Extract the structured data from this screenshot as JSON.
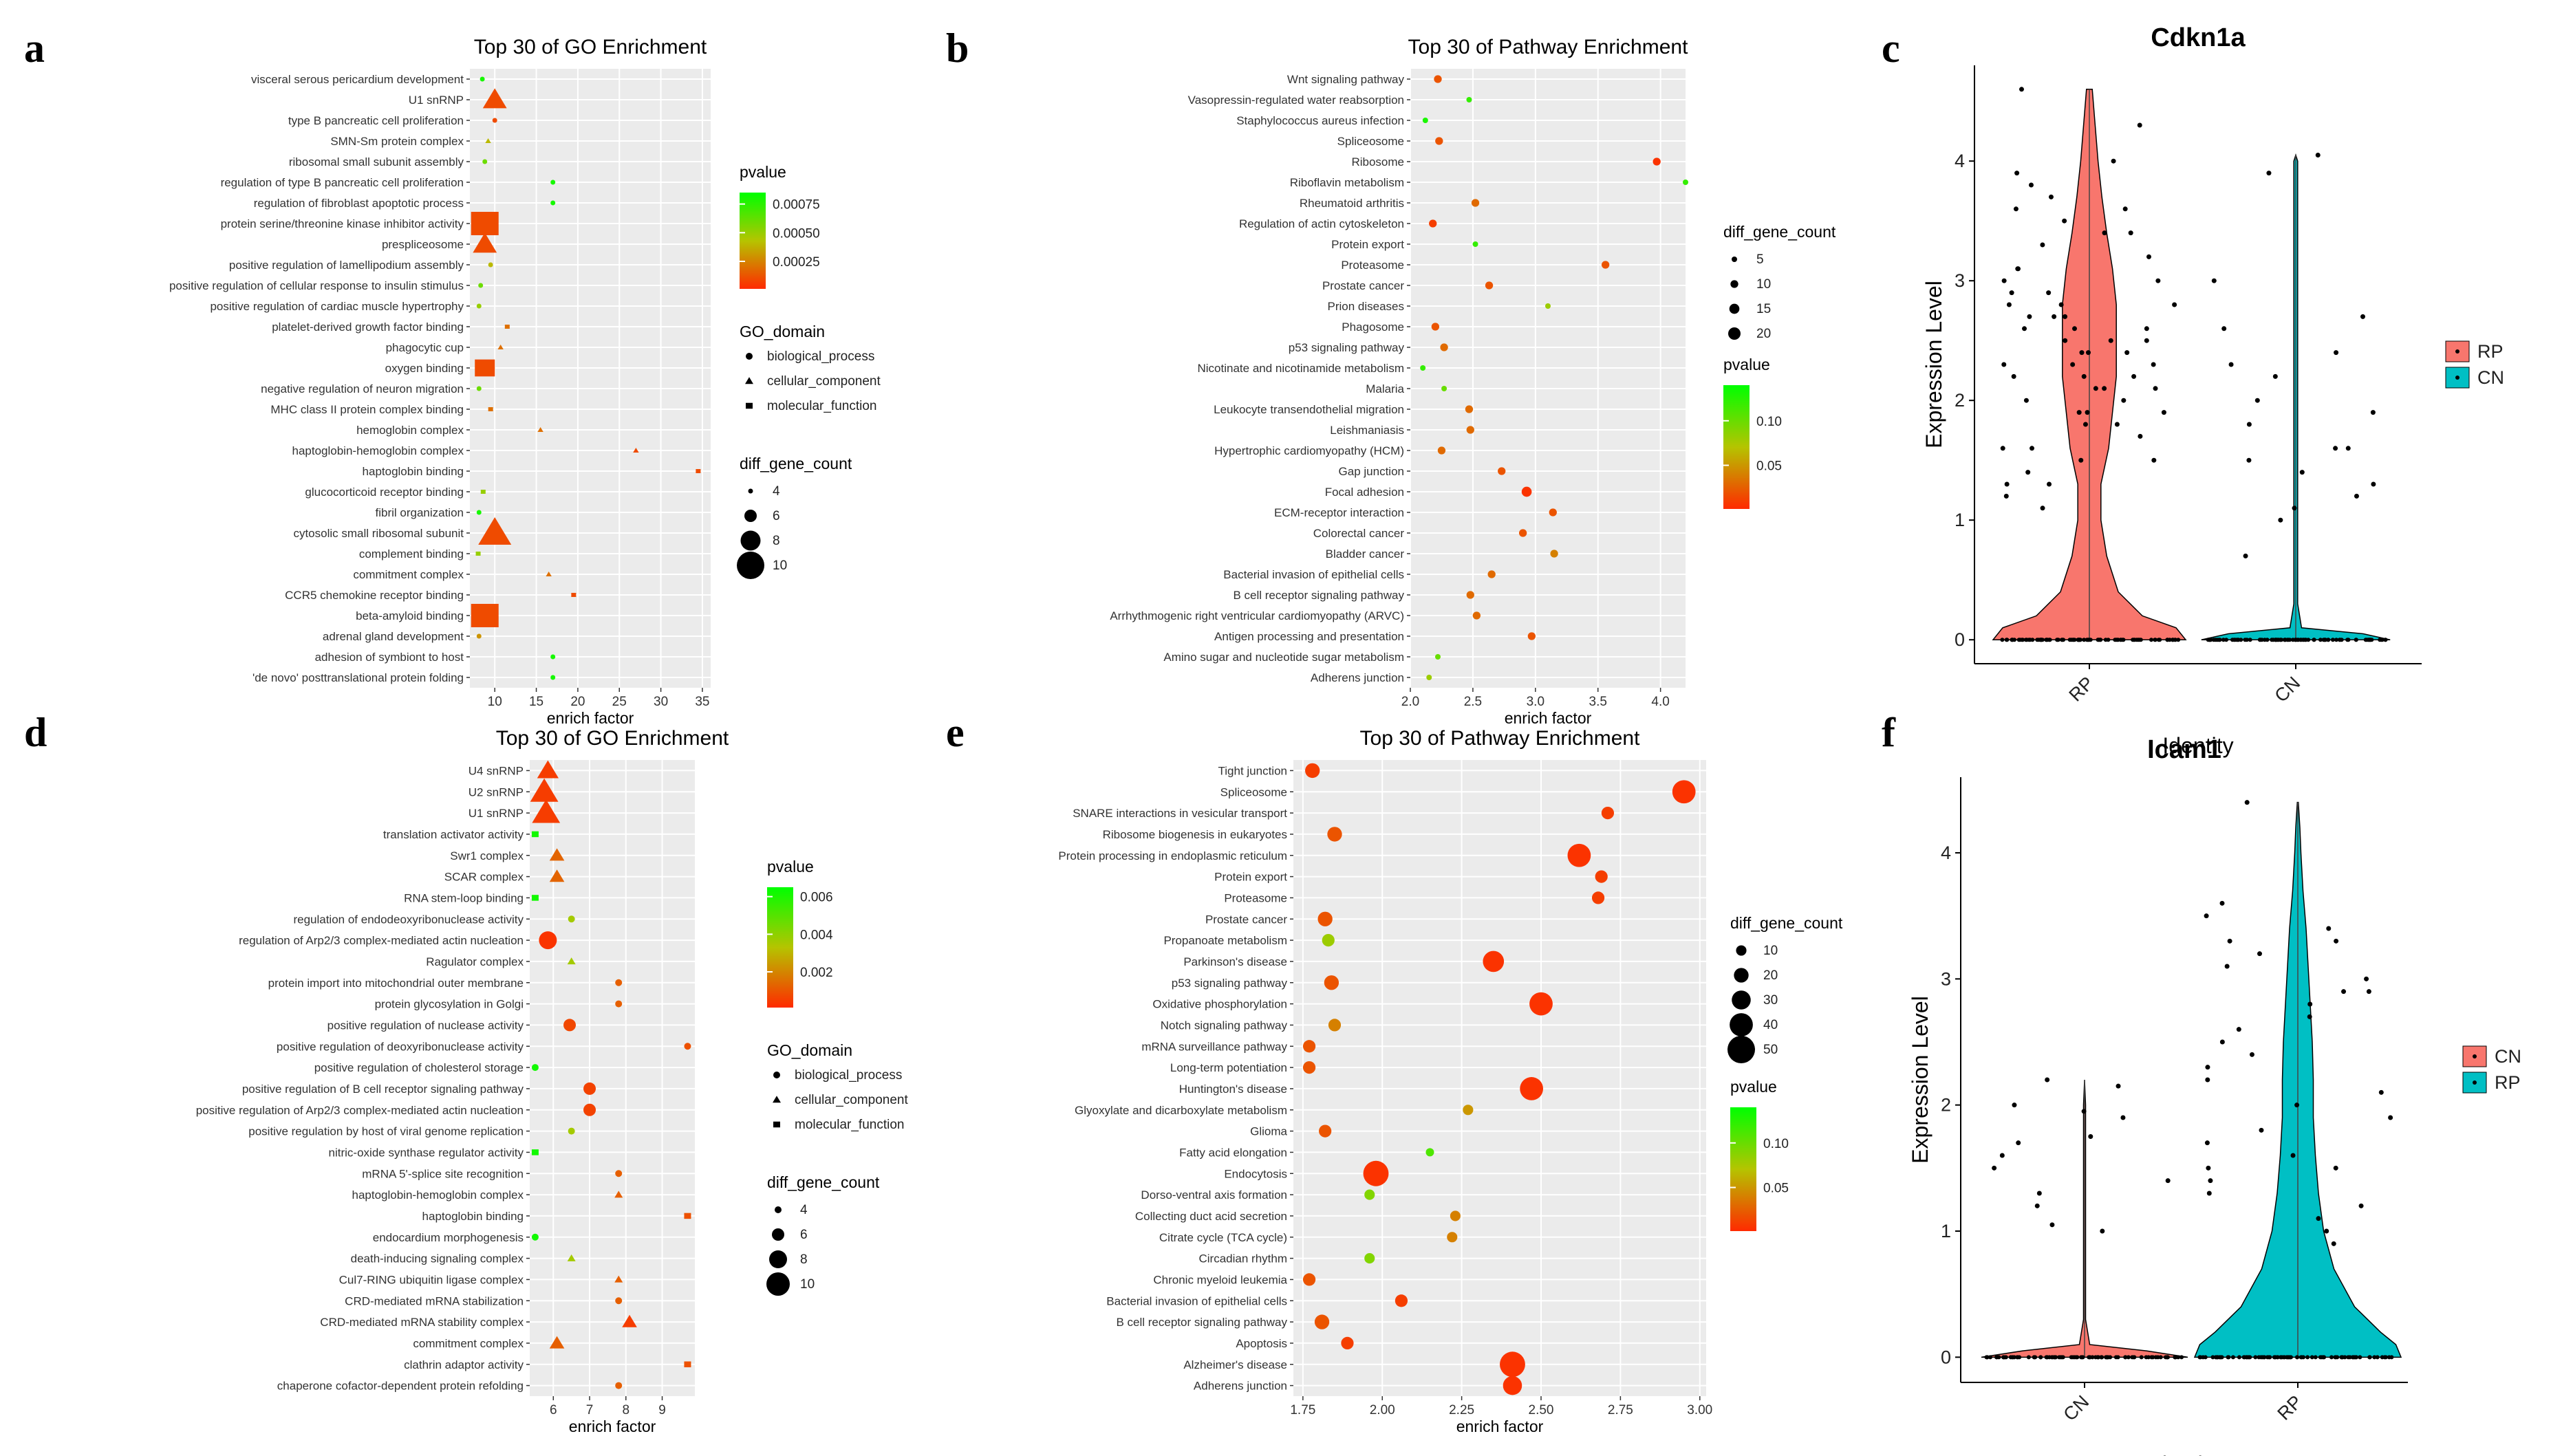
{
  "chart_data": [
    {
      "id": "a",
      "panel_label": "a",
      "type": "scatter",
      "title": "Top 30 of GO Enrichment",
      "xlabel": "enrich factor",
      "xlim": [
        7,
        36
      ],
      "xticks": [
        10,
        15,
        20,
        25,
        30,
        35
      ],
      "ylabels": [
        "visceral serous pericardium development",
        "U1 snRNP",
        "type B pancreatic cell proliferation",
        "SMN-Sm protein complex",
        "ribosomal small subunit assembly",
        "regulation of type B pancreatic cell proliferation",
        "regulation of fibroblast apoptotic process",
        "protein serine/threonine kinase inhibitor activity",
        "prespliceosome",
        "positive regulation of lamellipodium assembly",
        "positive regulation of cellular response to insulin stimulus",
        "positive regulation of cardiac muscle hypertrophy",
        "platelet-derived growth factor binding",
        "phagocytic cup",
        "oxygen binding",
        "negative regulation of neuron migration",
        "MHC class II protein complex binding",
        "hemoglobin complex",
        "haptoglobin-hemoglobin complex",
        "haptoglobin binding",
        "glucocorticoid receptor binding",
        "fibril organization",
        "cytosolic small ribosomal subunit",
        "complement binding",
        "commitment complex",
        "CCR5 chemokine receptor binding",
        "beta-amyloid binding",
        "adrenal gland development",
        "adhesion of symbiont to host",
        "'de novo' posttranslational protein folding"
      ],
      "x": [
        8.5,
        10,
        10,
        9.2,
        8.8,
        17,
        17,
        8.8,
        8.8,
        9.5,
        8.3,
        8.1,
        11.5,
        10.7,
        8.8,
        8.1,
        9.5,
        15.5,
        27,
        34.5,
        8.6,
        8.1,
        10,
        8,
        16.5,
        19.5,
        8.8,
        8.1,
        17,
        17
      ],
      "sizes": [
        4,
        8,
        4,
        4,
        4,
        4,
        4,
        10,
        8,
        4,
        4,
        4,
        4,
        4,
        8,
        4,
        4,
        4,
        4,
        4,
        4,
        4,
        10,
        4,
        4,
        4,
        10,
        4,
        4,
        4
      ],
      "pvalue": [
        0.0008,
        0.0001,
        0.0001,
        0.0004,
        0.0006,
        0.0008,
        0.0008,
        0.0001,
        0.0001,
        0.0004,
        0.0006,
        0.0005,
        0.0002,
        0.0002,
        0.0001,
        0.0006,
        0.0002,
        0.0002,
        0.0001,
        0.0001,
        0.0005,
        0.0008,
        0.0001,
        0.0005,
        0.0002,
        0.0001,
        0.0001,
        0.0003,
        0.0008,
        0.0008
      ],
      "domain": [
        "b",
        "c",
        "b",
        "c",
        "b",
        "b",
        "b",
        "m",
        "c",
        "b",
        "b",
        "b",
        "m",
        "c",
        "m",
        "b",
        "m",
        "c",
        "c",
        "m",
        "m",
        "b",
        "c",
        "m",
        "c",
        "m",
        "m",
        "b",
        "b",
        "b"
      ],
      "pvalue_range": [
        1e-05,
        0.00085
      ],
      "pvalue_legend_title": "pvalue",
      "pvalue_ticks": [
        "0.00075",
        "0.00050",
        "0.00025"
      ],
      "pvalue_tick_values": [
        0.00075,
        0.0005,
        0.00025
      ],
      "domain_legend_title": "GO_domain",
      "domain_legend": [
        "biological_process",
        "cellular_component",
        "molecular_function"
      ],
      "size_legend_title": "diff_gene_count",
      "size_legend": [
        "4",
        "6",
        "8",
        "10"
      ],
      "size_legend_values": [
        4,
        6,
        8,
        10
      ],
      "size_domain": [
        4,
        10
      ]
    },
    {
      "id": "b",
      "panel_label": "b",
      "type": "scatter",
      "title": "Top 30 of Pathway Enrichment",
      "xlabel": "enrich factor",
      "xlim": [
        2.0,
        4.2
      ],
      "xticks": [
        2.0,
        2.5,
        3.0,
        3.5,
        4.0
      ],
      "xtick_labels": [
        "2.0",
        "2.5",
        "3.0",
        "3.5",
        "4.0"
      ],
      "ylabels": [
        "Wnt signaling pathway",
        "Vasopressin-regulated water reabsorption",
        "Staphylococcus aureus infection",
        "Spliceosome",
        "Ribosome",
        "Riboflavin metabolism",
        "Rheumatoid arthritis",
        "Regulation of actin cytoskeleton",
        "Protein export",
        "Proteasome",
        "Prostate cancer",
        "Prion diseases",
        "Phagosome",
        "p53 signaling pathway",
        "Nicotinate and nicotinamide metabolism",
        "Malaria",
        "Leukocyte transendothelial migration",
        "Leishmaniasis",
        "Hypertrophic cardiomyopathy (HCM)",
        "Gap junction",
        "Focal adhesion",
        "ECM-receptor interaction",
        "Colorectal cancer",
        "Bladder cancer",
        "Bacterial invasion of epithelial cells",
        "B cell receptor signaling pathway",
        "Arrhythmogenic right ventricular cardiomyopathy (ARVC)",
        "Antigen processing and presentation",
        "Amino sugar and nucleotide sugar metabolism",
        "Adherens junction"
      ],
      "x": [
        2.22,
        2.47,
        2.12,
        2.23,
        3.97,
        4.2,
        2.52,
        2.18,
        2.52,
        3.56,
        2.63,
        3.1,
        2.2,
        2.27,
        2.1,
        2.27,
        2.47,
        2.48,
        2.25,
        2.73,
        2.93,
        3.14,
        2.9,
        3.15,
        2.65,
        2.48,
        2.53,
        2.97,
        2.22,
        2.15
      ],
      "sizes": [
        10,
        5,
        5,
        10,
        10,
        5,
        10,
        10,
        5,
        10,
        10,
        5,
        10,
        10,
        5,
        5,
        10,
        10,
        10,
        10,
        15,
        10,
        10,
        10,
        10,
        10,
        10,
        10,
        5,
        5
      ],
      "pvalue": [
        0.02,
        0.12,
        0.13,
        0.02,
        0.005,
        0.12,
        0.03,
        0.01,
        0.12,
        0.02,
        0.02,
        0.08,
        0.02,
        0.03,
        0.12,
        0.1,
        0.03,
        0.03,
        0.03,
        0.02,
        0.005,
        0.02,
        0.02,
        0.04,
        0.03,
        0.03,
        0.03,
        0.02,
        0.1,
        0.08
      ],
      "pvalue_range": [
        0.001,
        0.14
      ],
      "pvalue_legend_title": "pvalue",
      "pvalue_ticks": [
        "0.10",
        "0.05"
      ],
      "pvalue_tick_values": [
        0.1,
        0.05
      ],
      "size_legend_title": "diff_gene_count",
      "size_legend": [
        "5",
        "10",
        "15",
        "20"
      ],
      "size_legend_values": [
        5,
        10,
        15,
        20
      ],
      "size_domain": [
        5,
        20
      ]
    },
    {
      "id": "d",
      "panel_label": "d",
      "type": "scatter",
      "title": "Top 30 of GO Enrichment",
      "xlabel": "enrich factor",
      "xlim": [
        5.35,
        9.9
      ],
      "xticks": [
        6,
        7,
        8,
        9
      ],
      "ylabels": [
        "U4 snRNP",
        "U2 snRNP",
        "U1 snRNP",
        "translation activator activity",
        "Swr1 complex",
        "SCAR complex",
        "RNA stem-loop binding",
        "regulation of endodeoxyribonuclease activity",
        "regulation of Arp2/3 complex-mediated actin nucleation",
        "Ragulator complex",
        "protein import into mitochondrial outer membrane",
        "protein glycosylation in Golgi",
        "positive regulation of nuclease activity",
        "positive regulation of deoxyribonuclease activity",
        "positive regulation of cholesterol storage",
        "positive regulation of B cell receptor signaling pathway",
        "positive regulation of Arp2/3 complex-mediated actin nucleation",
        "positive regulation by host of viral genome replication",
        "nitric-oxide synthase regulator activity",
        "mRNA 5'-splice site recognition",
        "haptoglobin-hemoglobin complex",
        "haptoglobin binding",
        "endocardium morphogenesis",
        "death-inducing signaling complex",
        "Cul7-RING ubiquitin ligase complex",
        "CRD-mediated mRNA stabilization",
        "CRD-mediated mRNA stability complex",
        "commitment complex",
        "clathrin adaptor activity",
        "chaperone cofactor-dependent protein refolding"
      ],
      "x": [
        5.85,
        5.75,
        5.8,
        5.5,
        6.1,
        6.1,
        5.5,
        6.5,
        5.85,
        6.5,
        7.8,
        7.8,
        6.45,
        9.7,
        5.5,
        7,
        7,
        6.5,
        5.5,
        7.8,
        7.8,
        9.7,
        5.5,
        6.5,
        7.8,
        7.8,
        8.1,
        6.1,
        9.7,
        7.8
      ],
      "sizes": [
        8,
        10,
        10,
        4,
        6,
        6,
        4,
        4,
        8,
        4,
        4,
        4,
        6,
        4,
        4,
        6,
        6,
        4,
        4,
        4,
        4,
        4,
        4,
        4,
        4,
        4,
        6,
        6,
        4,
        4
      ],
      "pvalue": [
        0.0005,
        0.0005,
        0.0005,
        0.0062,
        0.0013,
        0.0013,
        0.0062,
        0.0036,
        0.0003,
        0.0036,
        0.0012,
        0.0012,
        0.0007,
        0.0009,
        0.0062,
        0.0006,
        0.0006,
        0.0036,
        0.0062,
        0.0012,
        0.0012,
        0.0009,
        0.0062,
        0.0036,
        0.0012,
        0.0012,
        0.0005,
        0.0012,
        0.0009,
        0.0012
      ],
      "domain": [
        "c",
        "c",
        "c",
        "m",
        "c",
        "c",
        "m",
        "b",
        "b",
        "c",
        "b",
        "b",
        "b",
        "b",
        "b",
        "b",
        "b",
        "b",
        "m",
        "b",
        "c",
        "m",
        "b",
        "c",
        "c",
        "b",
        "c",
        "c",
        "m",
        "b"
      ],
      "pvalue_range": [
        0.0001,
        0.0065
      ],
      "pvalue_legend_title": "pvalue",
      "pvalue_ticks": [
        "0.006",
        "0.004",
        "0.002"
      ],
      "pvalue_tick_values": [
        0.006,
        0.004,
        0.002
      ],
      "domain_legend_title": "GO_domain",
      "domain_legend": [
        "biological_process",
        "cellular_component",
        "molecular_function"
      ],
      "size_legend_title": "diff_gene_count",
      "size_legend": [
        "4",
        "6",
        "8",
        "10"
      ],
      "size_legend_values": [
        4,
        6,
        8,
        10
      ],
      "size_domain": [
        4,
        10
      ]
    },
    {
      "id": "e",
      "panel_label": "e",
      "type": "scatter",
      "title": "Top 30 of Pathway Enrichment",
      "xlabel": "enrich factor",
      "xlim": [
        1.72,
        3.02
      ],
      "xticks": [
        1.75,
        2.0,
        2.25,
        2.5,
        2.75,
        3.0
      ],
      "xtick_labels": [
        "1.75",
        "2.00",
        "2.25",
        "2.50",
        "2.75",
        "3.00"
      ],
      "ylabels": [
        "Tight junction",
        "Spliceosome",
        "SNARE interactions in vesicular transport",
        "Ribosome biogenesis in eukaryotes",
        "Protein processing in endoplasmic reticulum",
        "Protein export",
        "Proteasome",
        "Prostate cancer",
        "Propanoate metabolism",
        "Parkinson's disease",
        "p53 signaling pathway",
        "Oxidative phosphorylation",
        "Notch signaling pathway",
        "mRNA surveillance pathway",
        "Long-term potentiation",
        "Huntington's disease",
        "Glyoxylate and dicarboxylate metabolism",
        "Glioma",
        "Fatty acid elongation",
        "Endocytosis",
        "Dorso-ventral axis formation",
        "Collecting duct acid secretion",
        "Citrate cycle (TCA cycle)",
        "Circadian rhythm",
        "Chronic myeloid leukemia",
        "Bacterial invasion of epithelial cells",
        "B cell receptor signaling pathway",
        "Apoptosis",
        "Alzheimer's disease",
        "Adherens junction"
      ],
      "x": [
        1.78,
        2.95,
        2.71,
        1.85,
        2.62,
        2.69,
        2.68,
        1.82,
        1.83,
        2.35,
        1.84,
        2.5,
        1.85,
        1.77,
        1.77,
        2.47,
        2.27,
        1.82,
        2.15,
        1.98,
        1.96,
        2.23,
        2.22,
        1.96,
        1.77,
        2.06,
        1.81,
        1.89,
        2.41,
        2.41
      ],
      "sizes": [
        20,
        40,
        15,
        20,
        40,
        15,
        15,
        20,
        15,
        35,
        20,
        40,
        15,
        15,
        15,
        40,
        10,
        15,
        5,
        45,
        10,
        10,
        10,
        10,
        15,
        15,
        20,
        15,
        45,
        30
      ],
      "pvalue": [
        0.01,
        0.005,
        0.01,
        0.02,
        0.005,
        0.01,
        0.01,
        0.02,
        0.08,
        0.005,
        0.02,
        0.005,
        0.04,
        0.02,
        0.02,
        0.005,
        0.05,
        0.02,
        0.11,
        0.005,
        0.09,
        0.04,
        0.04,
        0.09,
        0.02,
        0.01,
        0.02,
        0.01,
        0.005,
        0.005
      ],
      "pvalue_range": [
        0.001,
        0.14
      ],
      "pvalue_legend_title": "pvalue",
      "pvalue_ticks": [
        "0.10",
        "0.05"
      ],
      "pvalue_tick_values": [
        0.1,
        0.05
      ],
      "size_legend_title": "diff_gene_count",
      "size_legend": [
        "10",
        "20",
        "30",
        "40",
        "50"
      ],
      "size_legend_values": [
        10,
        20,
        30,
        40,
        50
      ],
      "size_domain": [
        5,
        50
      ]
    },
    {
      "id": "c",
      "panel_label": "c",
      "type": "violin",
      "title": "Cdkn1a",
      "xlabel": "Identity",
      "ylabel": "Expression Level",
      "ylim": [
        -0.2,
        4.8
      ],
      "yticks": [
        0,
        1,
        2,
        3,
        4
      ],
      "categories": [
        "RP",
        "CN"
      ],
      "legend": [
        "RP",
        "CN"
      ],
      "colors": {
        "RP": "#F8766D",
        "CN": "#00BFC4"
      },
      "density": [
        {
          "y": [
            0,
            0.1,
            0.2,
            0.4,
            0.7,
            1,
            1.3,
            1.6,
            1.9,
            2.2,
            2.5,
            2.8,
            3.1,
            3.4,
            3.7,
            4,
            4.3,
            4.6
          ],
          "w": [
            1,
            0.9,
            0.55,
            0.3,
            0.18,
            0.12,
            0.12,
            0.2,
            0.24,
            0.28,
            0.28,
            0.28,
            0.24,
            0.18,
            0.13,
            0.09,
            0.06,
            0.03
          ]
        },
        {
          "y": [
            0,
            0.05,
            0.1,
            0.3,
            1,
            2,
            3,
            4,
            4.05
          ],
          "w": [
            0.98,
            0.7,
            0.06,
            0.02,
            0.02,
            0.02,
            0.02,
            0.02,
            0.0
          ]
        }
      ],
      "points": [
        [
          2.3,
          2.5,
          2.1,
          1.9,
          3.1,
          2.8,
          2.4,
          1.5,
          3.4,
          2.2,
          2.6,
          1.7,
          3.0,
          2.9,
          1.3,
          2.7,
          3.6,
          2.0,
          1.8,
          2.3,
          3.3,
          2.5,
          1.6,
          2.8,
          3.9,
          1.2,
          2.1,
          2.6,
          3.2,
          1.4,
          2.4,
          2.9,
          3.7,
          1.9,
          2.2,
          3.5,
          1.1,
          2.7,
          4.3,
          2.0,
          3.8,
          1.6,
          2.5,
          3.1,
          2.3,
          4.6,
          1.8,
          2.6,
          3.0,
          2.2,
          1.5,
          3.4,
          2.8,
          1.9,
          2.4,
          4.0,
          1.3,
          2.7,
          3.6,
          2.1
        ],
        [
          2.3,
          1.6,
          1.2,
          3.0,
          1.4,
          2.0,
          3.9,
          1.8,
          2.4,
          1.1,
          1.5,
          4.05,
          2.7,
          1.3,
          2.2,
          1.9,
          1.6,
          1.0,
          2.6,
          0.7
        ]
      ]
    },
    {
      "id": "f",
      "panel_label": "f",
      "type": "violin",
      "title": "Icam1",
      "xlabel": "Identity",
      "ylabel": "Expression Level",
      "ylim": [
        -0.2,
        4.6
      ],
      "yticks": [
        0,
        1,
        2,
        3,
        4
      ],
      "categories": [
        "CN",
        "RP"
      ],
      "legend": [
        "CN",
        "RP"
      ],
      "colors": {
        "CN": "#F8766D",
        "RP": "#00BFC4"
      },
      "density": [
        {
          "y": [
            0,
            0.05,
            0.1,
            0.3,
            1,
            2,
            2.2
          ],
          "w": [
            1,
            0.6,
            0.05,
            0.01,
            0.01,
            0.01,
            0.0
          ]
        },
        {
          "y": [
            0,
            0.1,
            0.2,
            0.4,
            0.7,
            1,
            1.3,
            1.6,
            1.9,
            2.2,
            2.5,
            2.8,
            3.1,
            3.4,
            3.7,
            4,
            4.2,
            4.4
          ],
          "w": [
            1,
            0.95,
            0.8,
            0.55,
            0.35,
            0.25,
            0.2,
            0.17,
            0.15,
            0.15,
            0.14,
            0.12,
            0.1,
            0.08,
            0.05,
            0.03,
            0.02,
            0.005
          ]
        }
      ],
      "points": [
        [
          2.2,
          1.4,
          1.0,
          1.7,
          2.15,
          1.9,
          1.5,
          1.2,
          2.0,
          1.05,
          1.6,
          1.3,
          1.95,
          1.75
        ],
        [
          1.2,
          2.5,
          3.3,
          1.7,
          2.9,
          3.0,
          1.0,
          3.5,
          1.5,
          2.6,
          3.2,
          1.9,
          2.2,
          1.3,
          4.4,
          2.8,
          1.1,
          3.1,
          2.4,
          1.6,
          3.6,
          2.0,
          1.4,
          2.7,
          3.3,
          0.9,
          2.1,
          1.8,
          2.9,
          3.4,
          1.5,
          2.3
        ]
      ]
    }
  ]
}
